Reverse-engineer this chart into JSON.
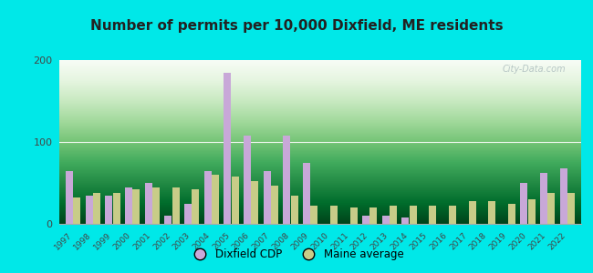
{
  "years": [
    1997,
    1998,
    1999,
    2000,
    2001,
    2002,
    2003,
    2004,
    2005,
    2006,
    2007,
    2008,
    2009,
    2010,
    2011,
    2012,
    2013,
    2014,
    2015,
    2016,
    2017,
    2018,
    2019,
    2020,
    2021,
    2022
  ],
  "dixfield": [
    65,
    35,
    35,
    45,
    50,
    10,
    25,
    65,
    185,
    108,
    65,
    108,
    75,
    0,
    0,
    10,
    10,
    8,
    0,
    0,
    0,
    0,
    0,
    50,
    62,
    68
  ],
  "maine": [
    32,
    38,
    38,
    42,
    44,
    44,
    42,
    60,
    58,
    52,
    47,
    35,
    22,
    22,
    20,
    20,
    22,
    22,
    22,
    22,
    28,
    28,
    25,
    30,
    38,
    38
  ],
  "title": "Number of permits per 10,000 Dixfield, ME residents",
  "dixfield_color": "#c8a8d8",
  "maine_color": "#c8cc88",
  "figure_bg": "#00e8e8",
  "ylim": [
    0,
    200
  ],
  "yticks": [
    0,
    100,
    200
  ],
  "legend_dixfield": "Dixfield CDP",
  "legend_maine": "Maine average",
  "watermark": "City-Data.com"
}
